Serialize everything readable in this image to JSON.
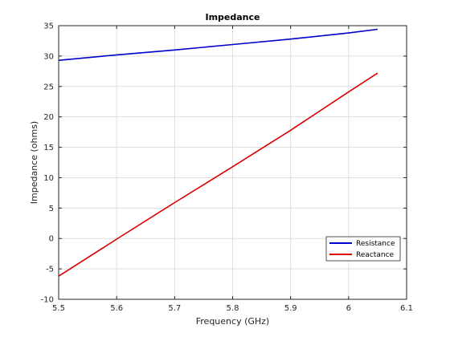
{
  "chart_data": {
    "type": "line",
    "title": "Impedance",
    "xlabel": "Frequency (GHz)",
    "ylabel": "Impedance (ohms)",
    "xlim": [
      5.5,
      6.1
    ],
    "ylim": [
      -10,
      35
    ],
    "xticks": [
      5.5,
      5.6,
      5.7,
      5.8,
      5.9,
      6.0,
      6.1
    ],
    "xtick_labels": [
      "5.5",
      "5.6",
      "5.7",
      "5.8",
      "5.9",
      "6",
      "6.1"
    ],
    "yticks": [
      -10,
      -5,
      0,
      5,
      10,
      15,
      20,
      25,
      30,
      35
    ],
    "ytick_labels": [
      "-10",
      "-5",
      "0",
      "5",
      "10",
      "15",
      "20",
      "25",
      "30",
      "35"
    ],
    "grid": true,
    "legend_position": "bottom-right",
    "series": [
      {
        "name": "Resistance",
        "color": "#0000cc",
        "x": [
          5.5,
          5.6,
          5.7,
          5.8,
          5.9,
          6.0,
          6.05
        ],
        "y": [
          29.3,
          30.2,
          31.0,
          31.9,
          32.8,
          33.8,
          34.4
        ]
      },
      {
        "name": "Reactance",
        "color": "#dd0000",
        "x": [
          5.5,
          5.6,
          5.7,
          5.8,
          5.9,
          6.0,
          6.05
        ],
        "y": [
          -6.2,
          -0.1,
          5.9,
          11.8,
          17.8,
          24.1,
          27.2
        ]
      }
    ]
  }
}
